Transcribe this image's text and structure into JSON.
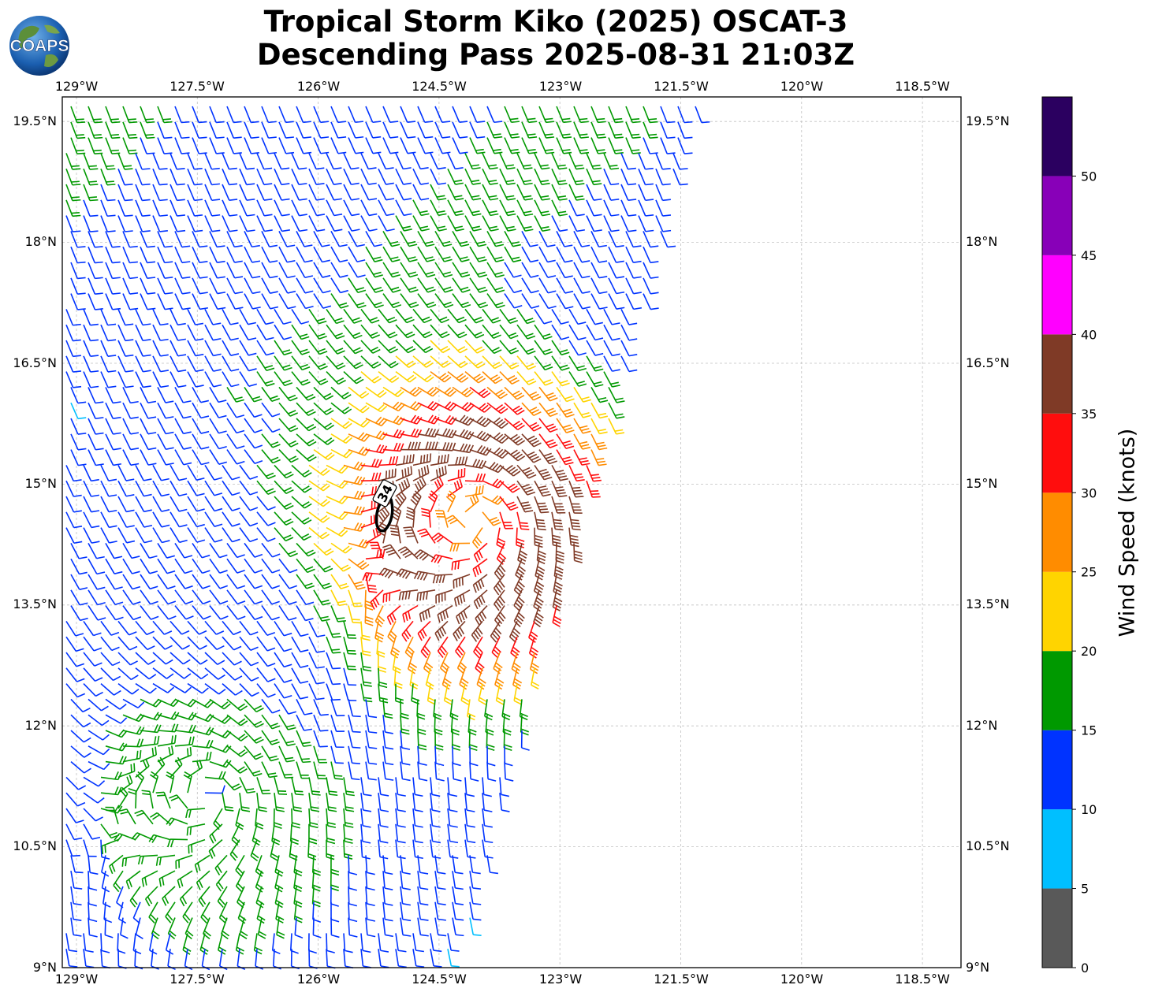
{
  "title_line1": "Tropical Storm Kiko (2025) OSCAT-3",
  "title_line2": "Descending Pass 2025-08-31 21:03Z",
  "logo_text": "COAPS",
  "colorbar_title": "Wind Speed (knots)",
  "contour_label": "34",
  "lon_labels": [
    "129°W",
    "127.5°W",
    "126°W",
    "124.5°W",
    "123°W",
    "121.5°W",
    "120°W",
    "118.5°W"
  ],
  "lat_labels": [
    "19.5°N",
    "18°N",
    "16.5°N",
    "15°N",
    "13.5°N",
    "12°N",
    "10.5°N",
    "9°N"
  ],
  "colorbar": {
    "bounds": [
      0,
      5,
      10,
      15,
      20,
      25,
      30,
      35,
      40,
      45,
      50
    ],
    "tick_labels": [
      "0",
      "5",
      "10",
      "15",
      "20",
      "25",
      "30",
      "35",
      "40",
      "45",
      "50"
    ],
    "colors": [
      "#595959",
      "#00bfff",
      "#0033ff",
      "#009900",
      "#ffd400",
      "#ff8c00",
      "#ff0d0d",
      "#7f3a26",
      "#ff00ff",
      "#8800b8",
      "#2b0060"
    ]
  }
}
